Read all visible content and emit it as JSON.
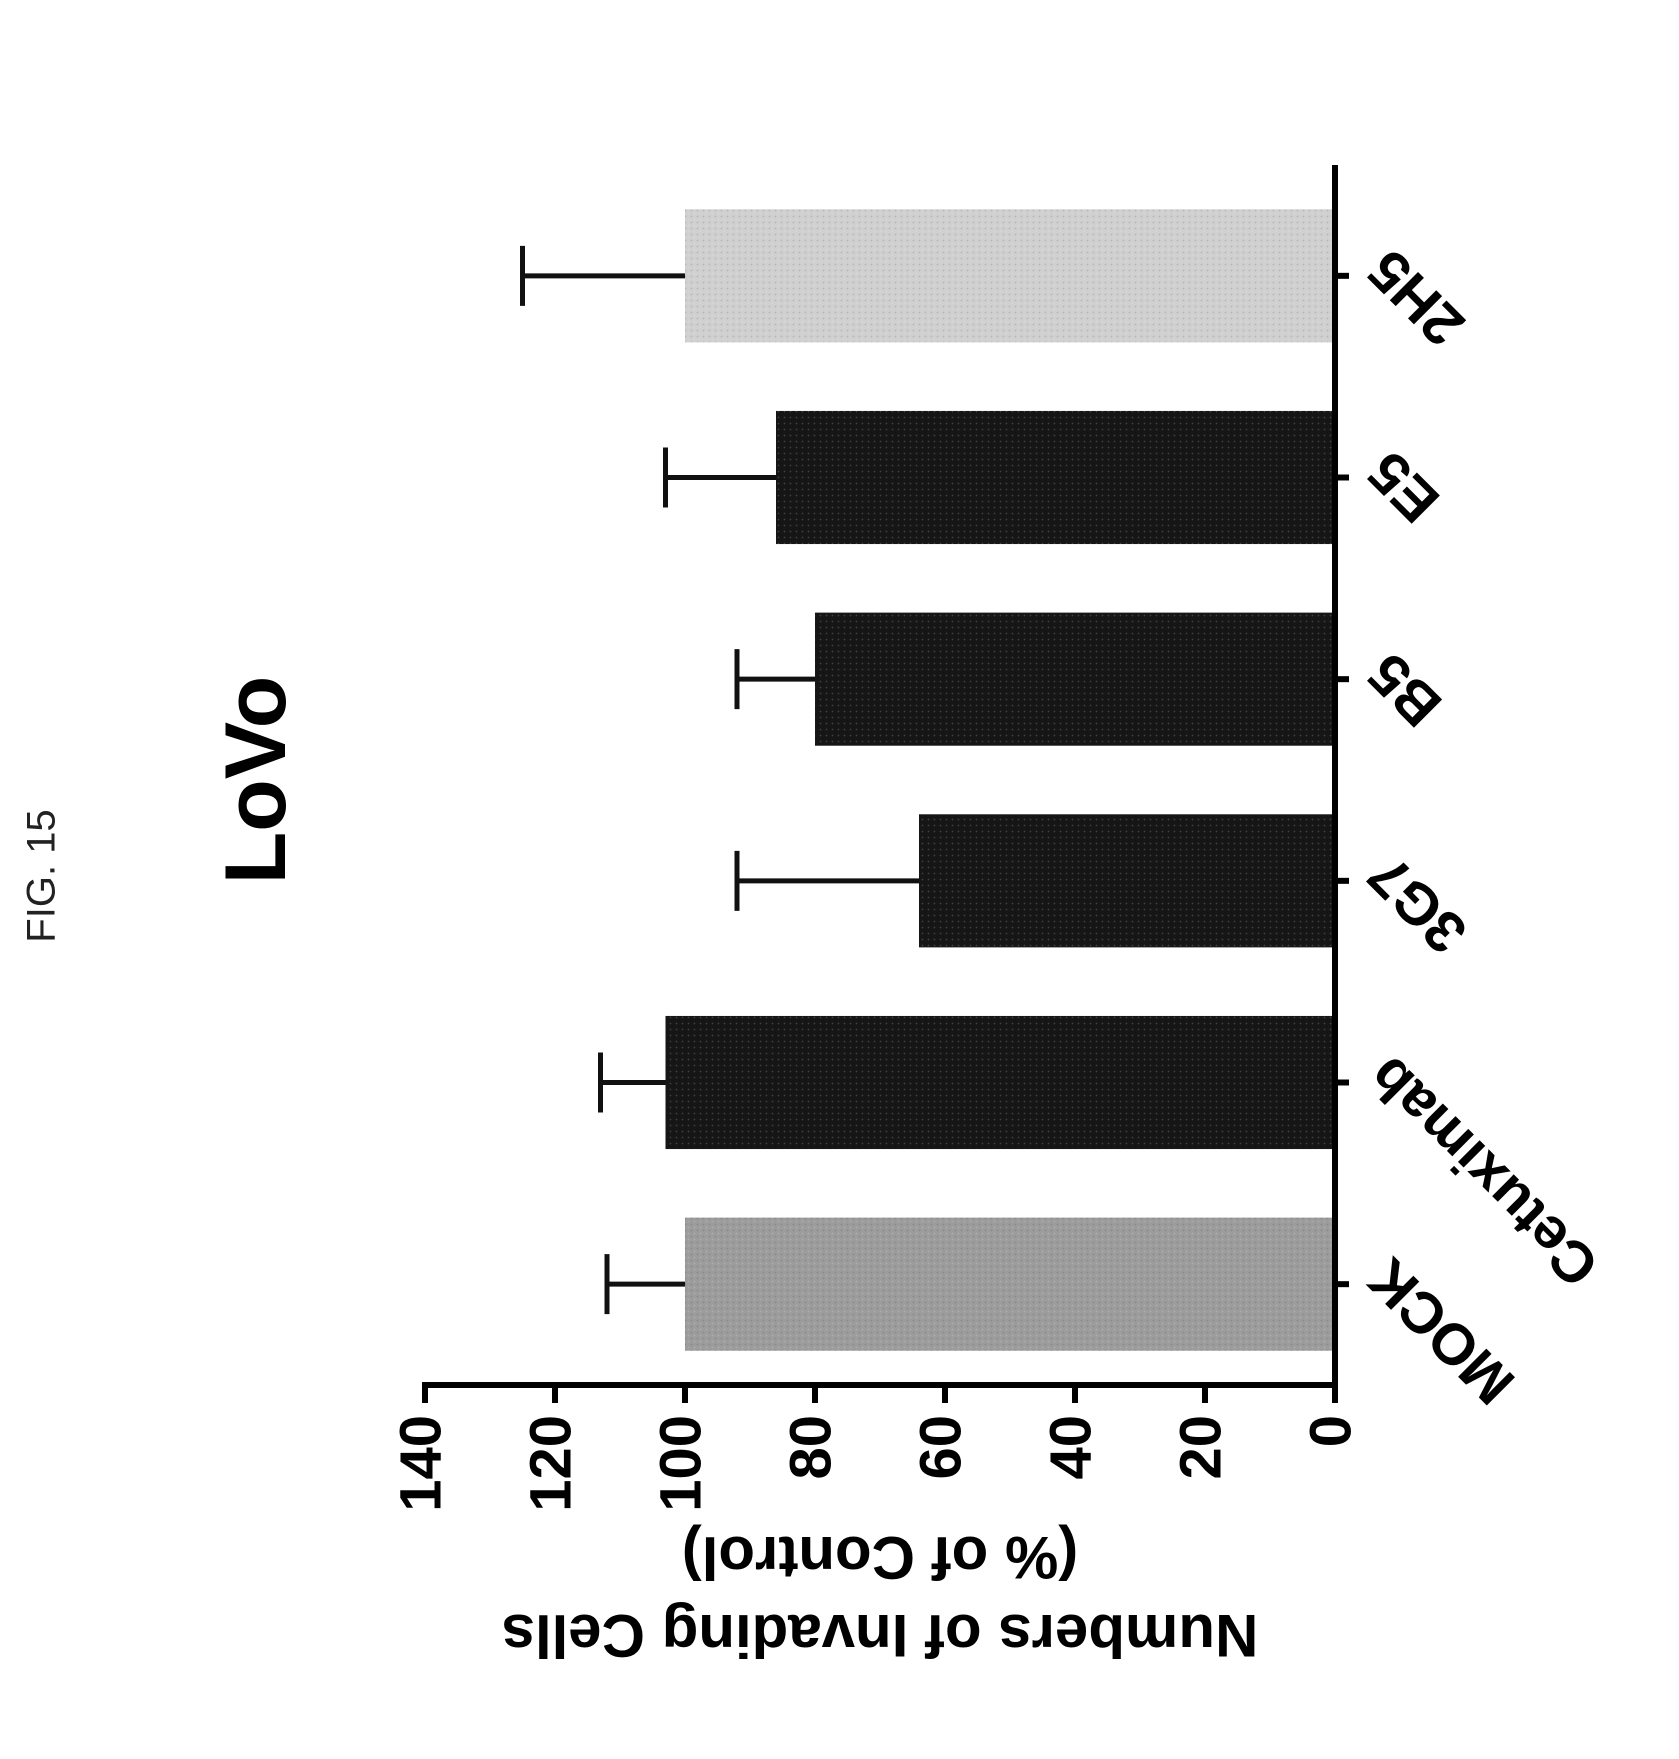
{
  "figure_label": "FIG. 15",
  "chart_data": {
    "type": "bar",
    "title": "LoVo",
    "xlabel": "",
    "ylabel_lines": [
      "Numbers of Invading Cells",
      "(% of Control)"
    ],
    "categories": [
      "MOCK",
      "Cetuximab",
      "3G7",
      "B5",
      "E5",
      "2H5"
    ],
    "values": [
      100,
      103,
      64,
      80,
      86,
      100
    ],
    "errors": [
      12,
      10,
      28,
      12,
      17,
      25
    ],
    "bar_colors": [
      "#9c9c9c",
      "#161616",
      "#161616",
      "#161616",
      "#161616",
      "#d0d0d0"
    ],
    "ylim": [
      0,
      140
    ],
    "yticks": [
      0,
      20,
      40,
      60,
      80,
      100,
      120,
      140
    ],
    "ytick_labels": [
      "0",
      "20",
      "40",
      "60",
      "80",
      "100",
      "120",
      "140"
    ],
    "grid": false,
    "orientation": "rotated -90 degrees on page"
  }
}
